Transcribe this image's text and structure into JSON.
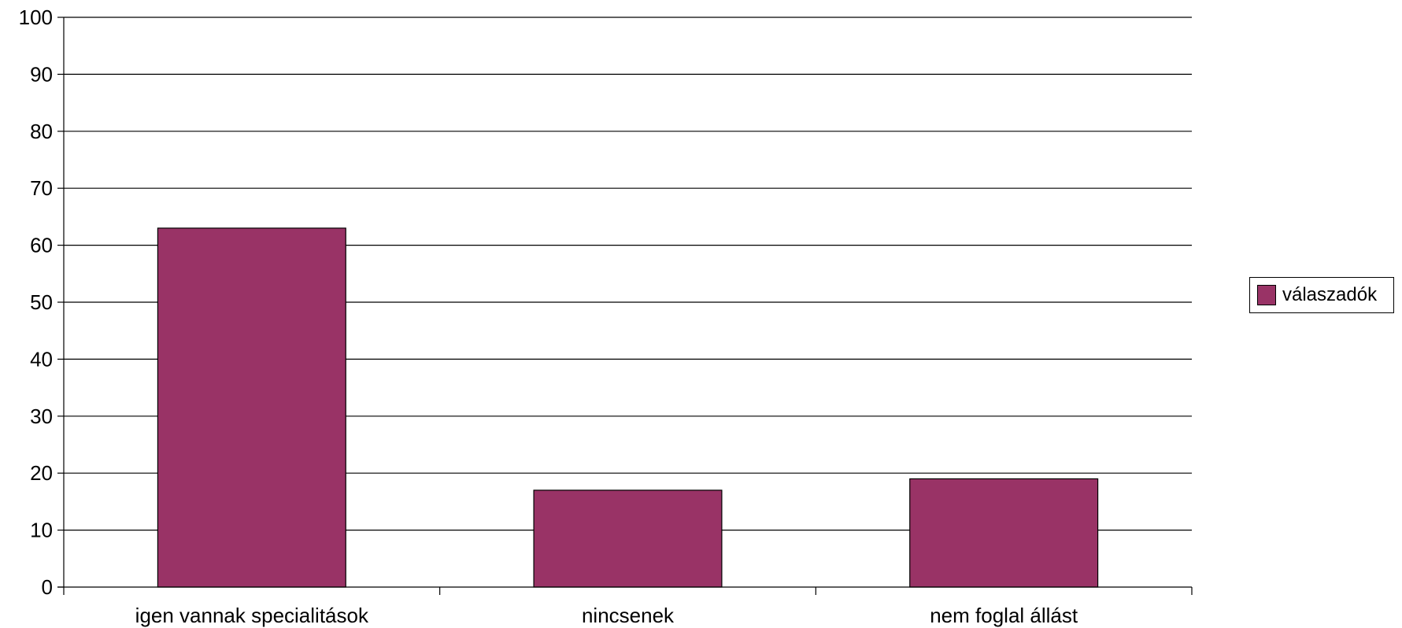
{
  "chart_data": {
    "type": "bar",
    "categories": [
      "igen vannak specialitások",
      "nincsenek",
      "nem foglal állást"
    ],
    "series": [
      {
        "name": "válaszadók",
        "values": [
          63,
          17,
          19
        ],
        "color": "#993366"
      }
    ],
    "yticks": [
      "0",
      "10",
      "20",
      "30",
      "40",
      "50",
      "60",
      "70",
      "80",
      "90",
      "100"
    ],
    "ylim": [
      0,
      100
    ],
    "grid": true,
    "legend_position": "right"
  }
}
